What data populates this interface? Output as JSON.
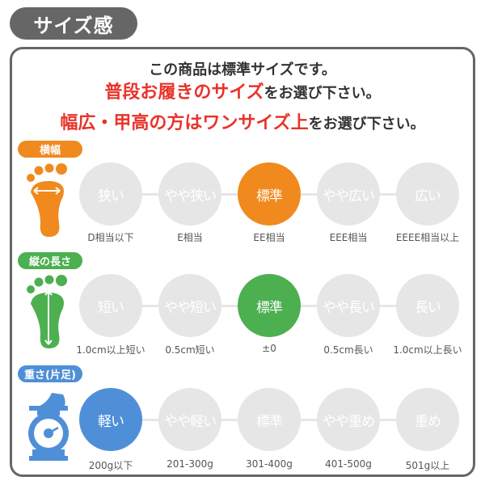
{
  "title": "サイズ感",
  "intro": {
    "line1": "この商品は標準サイズです。",
    "line2_em": "普段お履きのサイズ",
    "line2_rest": "をお選び下さい。",
    "line3_em": "幅広・甲高の方はワンサイズ上",
    "line3_rest": "をお選び下さい。"
  },
  "colors": {
    "width": "#f08a1e",
    "length": "#4caf50",
    "weight": "#4f8fd8",
    "inactive": "#e6e6e6",
    "emphasis": "#e8332a"
  },
  "rows": [
    {
      "label": "横幅",
      "icon": "foot-width-icon",
      "selected": 2,
      "options": [
        {
          "label": "狭い",
          "caption": "D相当以下"
        },
        {
          "label": "やや狭い",
          "caption": "E相当"
        },
        {
          "label": "標準",
          "caption": "EE相当"
        },
        {
          "label": "やや広い",
          "caption": "EEE相当"
        },
        {
          "label": "広い",
          "caption": "EEEE相当以上"
        }
      ]
    },
    {
      "label": "縦の長さ",
      "icon": "foot-length-icon",
      "selected": 2,
      "options": [
        {
          "label": "短い",
          "caption": "1.0cm以上短い"
        },
        {
          "label": "やや短い",
          "caption": "0.5cm短い"
        },
        {
          "label": "標準",
          "caption": "±0"
        },
        {
          "label": "やや長い",
          "caption": "0.5cm長い"
        },
        {
          "label": "長い",
          "caption": "1.0cm以上長い"
        }
      ]
    },
    {
      "label": "重さ(片足)",
      "icon": "scale-icon",
      "selected": 0,
      "options": [
        {
          "label": "軽い",
          "caption": "200g以下"
        },
        {
          "label": "やや軽い",
          "caption": "201-300g"
        },
        {
          "label": "標準",
          "caption": "301-400g"
        },
        {
          "label": "やや重め",
          "caption": "401-500g"
        },
        {
          "label": "重め",
          "caption": "501g以上"
        }
      ]
    }
  ]
}
